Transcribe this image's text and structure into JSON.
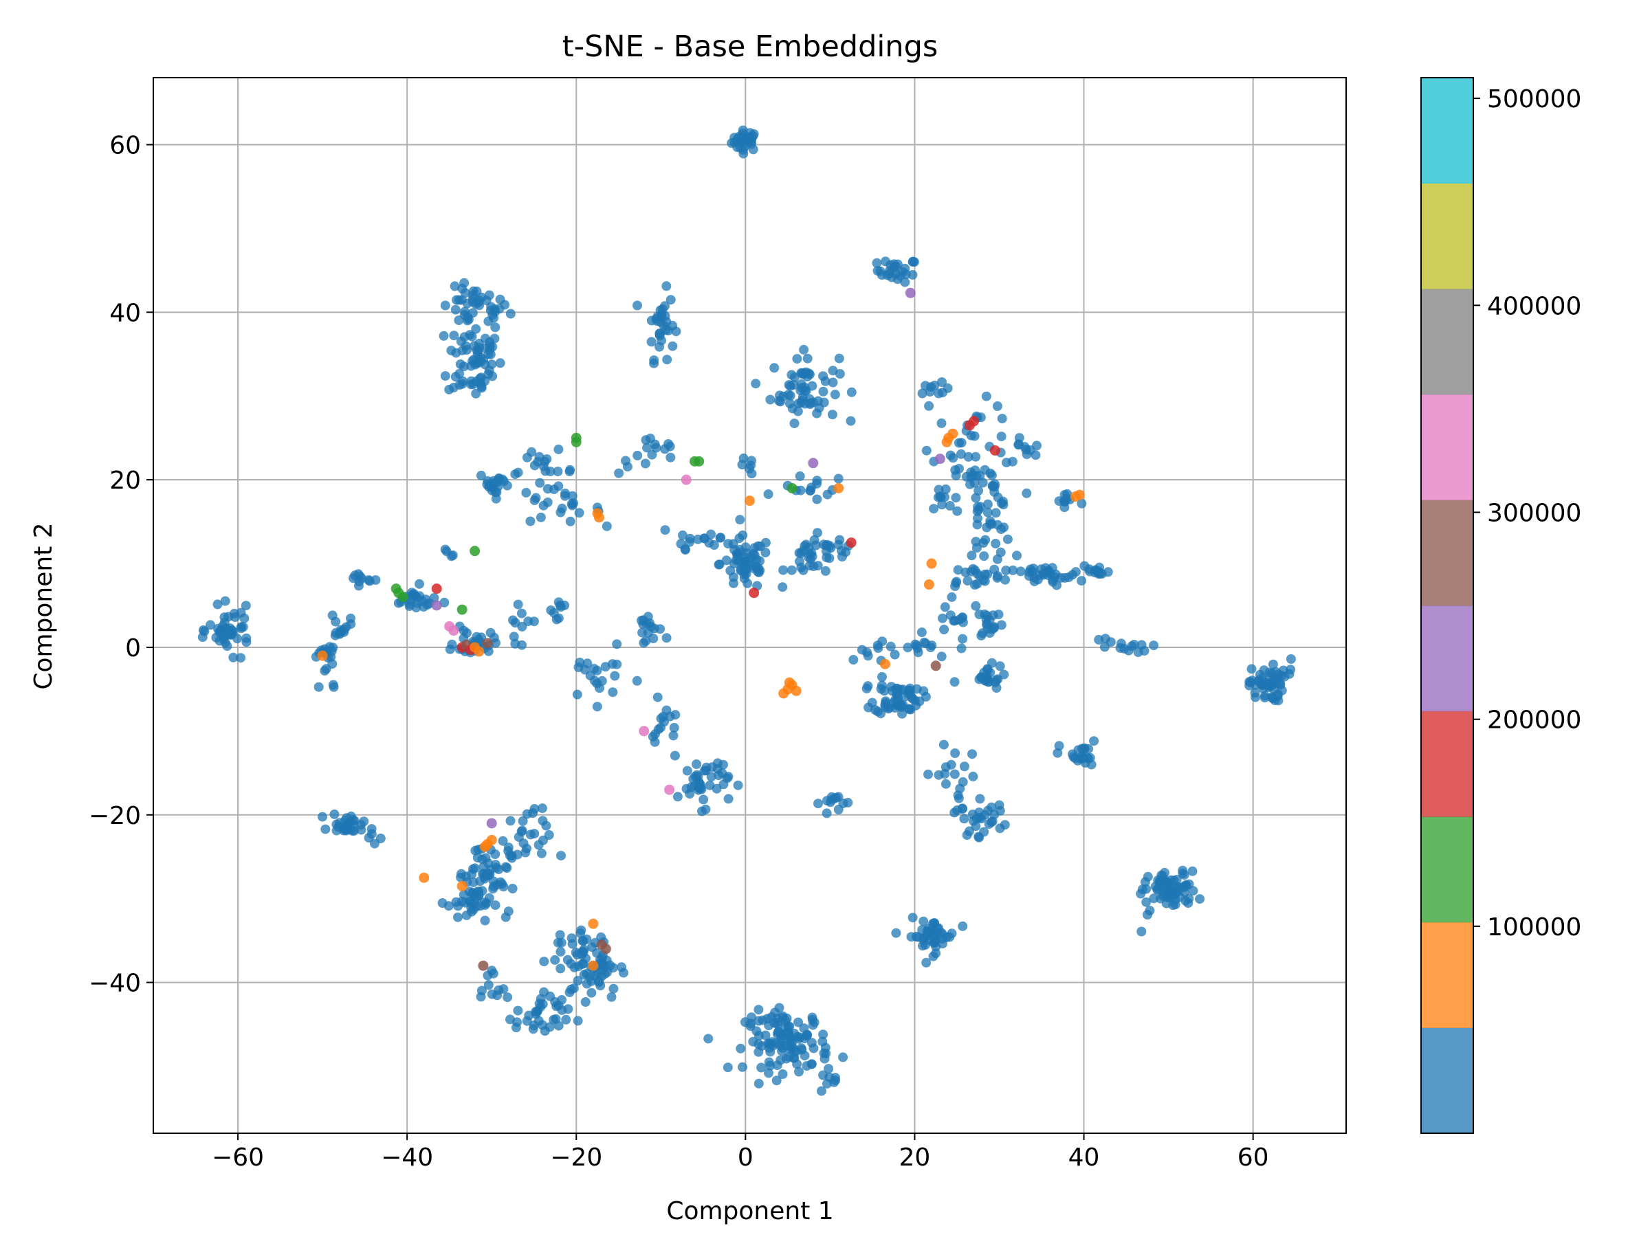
{
  "chart_data": {
    "type": "scatter",
    "title": "t-SNE - Base Embeddings",
    "xlabel": "Component 1",
    "ylabel": "Component 2",
    "xlim": [
      -70,
      71
    ],
    "ylim": [
      -58,
      68
    ],
    "xticks": [
      -60,
      -40,
      -20,
      0,
      20,
      40,
      60
    ],
    "xtick_labels": [
      "−60",
      "−40",
      "−20",
      "0",
      "20",
      "40",
      "60"
    ],
    "yticks": [
      -40,
      -20,
      0,
      20,
      40,
      60
    ],
    "ytick_labels": [
      "−40",
      "−20",
      "0",
      "20",
      "40",
      "60"
    ],
    "grid": true,
    "point_alpha": 0.75,
    "colorbar": {
      "colormap": "tab10",
      "range": [
        0,
        510000
      ],
      "colors": [
        "#1f77b4",
        "#ff7f0e",
        "#2ca02c",
        "#d62728",
        "#9467bd",
        "#8c564b",
        "#e377c2",
        "#7f7f7f",
        "#bcbd22",
        "#17becf"
      ],
      "ticks": [
        100000,
        200000,
        300000,
        400000,
        500000
      ],
      "tick_labels": [
        "100000",
        "200000",
        "300000",
        "400000",
        "500000"
      ]
    },
    "clusters": [
      {
        "cx": 0,
        "cy": 60.5,
        "sx": 0.8,
        "sy": 0.6,
        "n": 35
      },
      {
        "cx": 18,
        "cy": 45,
        "sx": 1.2,
        "sy": 0.7,
        "n": 25
      },
      {
        "cx": -32,
        "cy": 40.5,
        "sx": 2.0,
        "sy": 1.2,
        "n": 40
      },
      {
        "cx": -32,
        "cy": 34.5,
        "sx": 1.6,
        "sy": 2.5,
        "n": 65
      },
      {
        "cx": -10,
        "cy": 38.5,
        "sx": 0.8,
        "sy": 2.0,
        "n": 30
      },
      {
        "cx": 7,
        "cy": 31,
        "sx": 2.0,
        "sy": 2.0,
        "n": 60
      },
      {
        "cx": 22.5,
        "cy": 30.5,
        "sx": 0.8,
        "sy": 0.5,
        "n": 10
      },
      {
        "cx": -29.5,
        "cy": 19.5,
        "sx": 1.0,
        "sy": 0.8,
        "n": 20
      },
      {
        "cx": -24,
        "cy": 21,
        "sx": 2.0,
        "sy": 1.2,
        "n": 22
      },
      {
        "cx": -22,
        "cy": 16.5,
        "sx": 2.5,
        "sy": 0.8,
        "n": 18
      },
      {
        "cx": -11,
        "cy": 23,
        "sx": 2.0,
        "sy": 1.2,
        "n": 15
      },
      {
        "cx": -6,
        "cy": 13,
        "sx": 2.5,
        "sy": 1.2,
        "n": 15
      },
      {
        "cx": 0,
        "cy": 10,
        "sx": 1.5,
        "sy": 1.6,
        "n": 55
      },
      {
        "cx": 0,
        "cy": 21.5,
        "sx": 0.5,
        "sy": 0.5,
        "n": 6
      },
      {
        "cx": 8,
        "cy": 19,
        "sx": 2.0,
        "sy": 0.8,
        "n": 14
      },
      {
        "cx": 8,
        "cy": 10.5,
        "sx": 1.6,
        "sy": 1.3,
        "n": 28
      },
      {
        "cx": 11,
        "cy": 12,
        "sx": 1.0,
        "sy": 0.8,
        "n": 10
      },
      {
        "cx": 27,
        "cy": 24,
        "sx": 2.5,
        "sy": 2.5,
        "n": 35
      },
      {
        "cx": 33,
        "cy": 23.5,
        "sx": 1.0,
        "sy": 1.0,
        "n": 10
      },
      {
        "cx": 28.5,
        "cy": 16,
        "sx": 1.5,
        "sy": 3.0,
        "n": 50
      },
      {
        "cx": 23,
        "cy": 17.5,
        "sx": 0.8,
        "sy": 0.8,
        "n": 8
      },
      {
        "cx": 35,
        "cy": 8.5,
        "sx": 2.5,
        "sy": 0.6,
        "n": 35
      },
      {
        "cx": 38,
        "cy": 17.5,
        "sx": 1.0,
        "sy": 0.8,
        "n": 10
      },
      {
        "cx": 41.5,
        "cy": 9,
        "sx": 0.8,
        "sy": 0.4,
        "n": 12
      },
      {
        "cx": 27.5,
        "cy": 8.5,
        "sx": 1.5,
        "sy": 0.7,
        "n": 15
      },
      {
        "cx": 29,
        "cy": 3,
        "sx": 0.8,
        "sy": 1.0,
        "n": 16
      },
      {
        "cx": 25,
        "cy": 3,
        "sx": 1.5,
        "sy": 2.5,
        "n": 18
      },
      {
        "cx": 20,
        "cy": 0,
        "sx": 1.5,
        "sy": 1.0,
        "n": 12
      },
      {
        "cx": 18,
        "cy": -6,
        "sx": 1.4,
        "sy": 1.0,
        "n": 55
      },
      {
        "cx": 28.5,
        "cy": -3.5,
        "sx": 1.0,
        "sy": 0.7,
        "n": 20
      },
      {
        "cx": 44,
        "cy": 0,
        "sx": 1.8,
        "sy": 0.6,
        "n": 14
      },
      {
        "cx": 61.5,
        "cy": -4.5,
        "sx": 1.0,
        "sy": 1.0,
        "n": 45
      },
      {
        "cx": 63.5,
        "cy": -2.5,
        "sx": 0.7,
        "sy": 0.8,
        "n": 8
      },
      {
        "cx": 39.5,
        "cy": -13,
        "sx": 1.2,
        "sy": 0.9,
        "n": 22
      },
      {
        "cx": 50.5,
        "cy": -29,
        "sx": 1.4,
        "sy": 1.1,
        "n": 70
      },
      {
        "cx": 46.5,
        "cy": -30,
        "sx": 0.6,
        "sy": 1.5,
        "n": 6
      },
      {
        "cx": 28.5,
        "cy": -20.5,
        "sx": 1.5,
        "sy": 1.0,
        "n": 25
      },
      {
        "cx": 24.5,
        "cy": -16,
        "sx": 1.5,
        "sy": 2.0,
        "n": 20
      },
      {
        "cx": 22,
        "cy": -34.5,
        "sx": 1.4,
        "sy": 1.0,
        "n": 45
      },
      {
        "cx": 5,
        "cy": -47,
        "sx": 2.5,
        "sy": 1.8,
        "n": 110
      },
      {
        "cx": 10,
        "cy": -51.5,
        "sx": 0.8,
        "sy": 0.5,
        "n": 8
      },
      {
        "cx": 10.5,
        "cy": -18.5,
        "sx": 0.8,
        "sy": 0.6,
        "n": 12
      },
      {
        "cx": -5,
        "cy": -16,
        "sx": 1.5,
        "sy": 1.5,
        "n": 40
      },
      {
        "cx": -9.5,
        "cy": -10,
        "sx": 0.8,
        "sy": 1.8,
        "n": 15
      },
      {
        "cx": -11.5,
        "cy": 2,
        "sx": 0.8,
        "sy": 1.2,
        "n": 15
      },
      {
        "cx": -17.5,
        "cy": -3.5,
        "sx": 2.0,
        "sy": 1.5,
        "n": 20
      },
      {
        "cx": -61,
        "cy": 2,
        "sx": 1.2,
        "sy": 1.3,
        "n": 45
      },
      {
        "cx": -49.5,
        "cy": -2,
        "sx": 0.8,
        "sy": 2.0,
        "n": 20
      },
      {
        "cx": -48,
        "cy": 2,
        "sx": 0.8,
        "sy": 0.8,
        "n": 12
      },
      {
        "cx": -45.5,
        "cy": 8.2,
        "sx": 0.6,
        "sy": 0.4,
        "n": 10
      },
      {
        "cx": -39,
        "cy": 5.5,
        "sx": 1.5,
        "sy": 0.8,
        "n": 25
      },
      {
        "cx": -32,
        "cy": 0.5,
        "sx": 1.2,
        "sy": 0.8,
        "n": 28
      },
      {
        "cx": -26.5,
        "cy": 2.5,
        "sx": 0.8,
        "sy": 1.0,
        "n": 10
      },
      {
        "cx": -22.5,
        "cy": 4.5,
        "sx": 0.5,
        "sy": 0.6,
        "n": 8
      },
      {
        "cx": -35,
        "cy": 11,
        "sx": 0.4,
        "sy": 0.4,
        "n": 4
      },
      {
        "cx": -47,
        "cy": -21,
        "sx": 1.0,
        "sy": 0.6,
        "n": 30
      },
      {
        "cx": -44,
        "cy": -22.5,
        "sx": 0.8,
        "sy": 0.6,
        "n": 6
      },
      {
        "cx": -31,
        "cy": -27.5,
        "sx": 1.6,
        "sy": 2.2,
        "n": 60
      },
      {
        "cx": -33,
        "cy": -30.5,
        "sx": 1.2,
        "sy": 1.0,
        "n": 20
      },
      {
        "cx": -26,
        "cy": -23,
        "sx": 1.5,
        "sy": 1.8,
        "n": 25
      },
      {
        "cx": -24,
        "cy": -44,
        "sx": 1.6,
        "sy": 1.4,
        "n": 35
      },
      {
        "cx": -18,
        "cy": -38,
        "sx": 1.6,
        "sy": 2.0,
        "n": 55
      },
      {
        "cx": -20.5,
        "cy": -36,
        "sx": 1.0,
        "sy": 1.0,
        "n": 15
      },
      {
        "cx": -30,
        "cy": -40.5,
        "sx": 0.8,
        "sy": 1.2,
        "n": 10
      },
      {
        "cx": 15,
        "cy": -1,
        "sx": 1.5,
        "sy": 1.5,
        "n": 10
      }
    ],
    "colored_points": [
      {
        "x": -20,
        "y": 25,
        "class": 2
      },
      {
        "x": -20,
        "y": 24.5,
        "class": 2
      },
      {
        "x": -6,
        "y": 22.2,
        "class": 2
      },
      {
        "x": -5.5,
        "y": 22.2,
        "class": 2
      },
      {
        "x": -17.5,
        "y": 16,
        "class": 1
      },
      {
        "x": -17.3,
        "y": 15.5,
        "class": 1
      },
      {
        "x": -7,
        "y": 20,
        "class": 6
      },
      {
        "x": -32,
        "y": 11.5,
        "class": 2
      },
      {
        "x": -41,
        "y": 6.5,
        "class": 2
      },
      {
        "x": -40.5,
        "y": 6,
        "class": 2
      },
      {
        "x": -41.3,
        "y": 7,
        "class": 2
      },
      {
        "x": -36.5,
        "y": 7,
        "class": 3
      },
      {
        "x": -33.5,
        "y": 4.5,
        "class": 2
      },
      {
        "x": -36.5,
        "y": 5,
        "class": 4
      },
      {
        "x": -35,
        "y": 2.5,
        "class": 6
      },
      {
        "x": -34.5,
        "y": 2,
        "class": 6
      },
      {
        "x": -33.5,
        "y": 0,
        "class": 3
      },
      {
        "x": -33,
        "y": 0.3,
        "class": 5
      },
      {
        "x": -32.5,
        "y": -0.3,
        "class": 3
      },
      {
        "x": -32,
        "y": 0,
        "class": 1
      },
      {
        "x": -31.5,
        "y": -0.5,
        "class": 1
      },
      {
        "x": -30.5,
        "y": 0.5,
        "class": 5
      },
      {
        "x": -50,
        "y": -1,
        "class": 1
      },
      {
        "x": 0.5,
        "y": 17.5,
        "class": 1
      },
      {
        "x": 1,
        "y": 6.5,
        "class": 3
      },
      {
        "x": 8,
        "y": 22,
        "class": 4
      },
      {
        "x": 5.5,
        "y": 19,
        "class": 2
      },
      {
        "x": 11,
        "y": 19,
        "class": 1
      },
      {
        "x": 12.5,
        "y": 12.5,
        "class": 3
      },
      {
        "x": 19.5,
        "y": 42.3,
        "class": 4
      },
      {
        "x": 24,
        "y": 25,
        "class": 1
      },
      {
        "x": 24.5,
        "y": 25.5,
        "class": 1
      },
      {
        "x": 23.8,
        "y": 24.5,
        "class": 1
      },
      {
        "x": 26.5,
        "y": 26.5,
        "class": 3
      },
      {
        "x": 27,
        "y": 27,
        "class": 3
      },
      {
        "x": 29.5,
        "y": 23.5,
        "class": 3
      },
      {
        "x": 23,
        "y": 22.5,
        "class": 4
      },
      {
        "x": 39,
        "y": 18,
        "class": 1
      },
      {
        "x": 39.5,
        "y": 18.2,
        "class": 1
      },
      {
        "x": 22,
        "y": 10,
        "class": 1
      },
      {
        "x": 21.7,
        "y": 7.5,
        "class": 1
      },
      {
        "x": 16.5,
        "y": -2,
        "class": 1
      },
      {
        "x": 22.5,
        "y": -2.2,
        "class": 5
      },
      {
        "x": 5,
        "y": -5,
        "class": 1
      },
      {
        "x": 5.5,
        "y": -4.5,
        "class": 1
      },
      {
        "x": 4.5,
        "y": -5.5,
        "class": 1
      },
      {
        "x": 6,
        "y": -5.2,
        "class": 1
      },
      {
        "x": 5.2,
        "y": -4.2,
        "class": 1
      },
      {
        "x": -12,
        "y": -10,
        "class": 6
      },
      {
        "x": -9,
        "y": -17,
        "class": 6
      },
      {
        "x": -30.5,
        "y": -23.5,
        "class": 1
      },
      {
        "x": -30,
        "y": -23,
        "class": 1
      },
      {
        "x": -30.8,
        "y": -23.8,
        "class": 1
      },
      {
        "x": -30,
        "y": -21,
        "class": 4
      },
      {
        "x": -38,
        "y": -27.5,
        "class": 1
      },
      {
        "x": -33.5,
        "y": -28.5,
        "class": 1
      },
      {
        "x": -18,
        "y": -33,
        "class": 1
      },
      {
        "x": -17,
        "y": -35.5,
        "class": 5
      },
      {
        "x": -16.5,
        "y": -36,
        "class": 5
      },
      {
        "x": -31,
        "y": -38,
        "class": 5
      },
      {
        "x": -18,
        "y": -38,
        "class": 1
      }
    ]
  }
}
